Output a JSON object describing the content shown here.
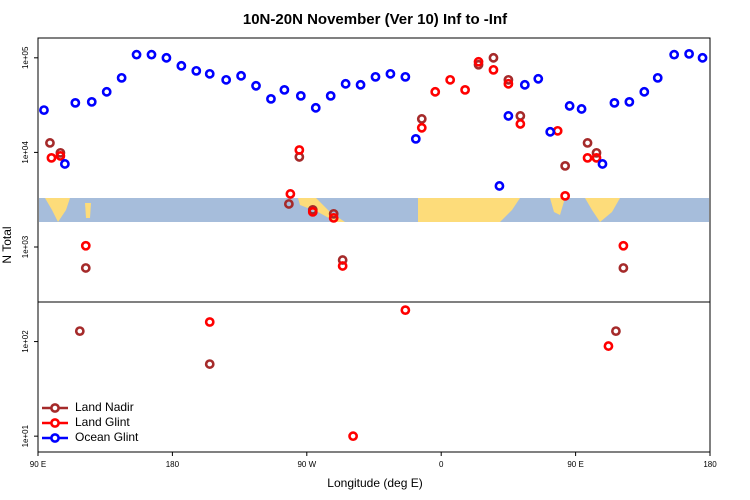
{
  "chart_data": {
    "type": "scatter",
    "title": "10N-20N November (Ver 10)   Inf to -Inf",
    "x_label": "Longitude (deg E)",
    "y_label": "N Total",
    "log_y": true,
    "legend": "bottom-left",
    "xlim": [
      90,
      540
    ],
    "xticks": [
      {
        "value": 90,
        "label": "90 E"
      },
      180,
      {
        "value": 270,
        "label": "90 W"
      },
      {
        "value": 360,
        "label": "0"
      },
      {
        "value": 450,
        "label": "90 E"
      },
      {
        "value": 540,
        "label": "180"
      }
    ],
    "ylim": [
      6.8,
      162000
    ],
    "yticks": [
      {
        "value": 10,
        "label": "1e+01"
      },
      {
        "value": 100,
        "label": "1e+02"
      },
      {
        "value": 1000,
        "label": "1e+03"
      },
      {
        "value": 10000,
        "label": "1e+04"
      },
      {
        "value": 100000,
        "label": "1e+05"
      }
    ],
    "series": [
      {
        "name": "Land Nadir",
        "color": "#a52a2a",
        "x": [
          98,
          105,
          122,
          118,
          205,
          258,
          265,
          274,
          288,
          294,
          347,
          385,
          395,
          405,
          413,
          443,
          458,
          464,
          477,
          482
        ],
        "values": [
          12600,
          9890,
          600,
          129,
          57.8,
          2850,
          8960,
          2470,
          2240,
          728,
          22600,
          84400,
          100000,
          58500,
          24300,
          7200,
          12600,
          9890,
          129,
          600
        ]
      },
      {
        "name": "Land Glint",
        "color": "#ff0000",
        "x": [
          99,
          105,
          122,
          205,
          259,
          265,
          274,
          288,
          294,
          301,
          336,
          347,
          356,
          366,
          376,
          385,
          395,
          405,
          413,
          438,
          443,
          458,
          464,
          472,
          482
        ],
        "values": [
          8750,
          9180,
          1030,
          161,
          3640,
          10600,
          2350,
          2030,
          630,
          10,
          215,
          18200,
          43700,
          58500,
          45800,
          90800,
          74600,
          53100,
          20000,
          16900,
          3470,
          8750,
          8750,
          89.6,
          1030
        ]
      },
      {
        "name": "Ocean Glint",
        "color": "#0000ff",
        "x": [
          94,
          108,
          115,
          126,
          136,
          146,
          156,
          166,
          176,
          186,
          196,
          205,
          216,
          226,
          236,
          246,
          255,
          266,
          276,
          286,
          296,
          306,
          316,
          326,
          336,
          343,
          399,
          405,
          416,
          425,
          433,
          446,
          454,
          468,
          476,
          486,
          496,
          505,
          516,
          526,
          535
        ],
        "values": [
          28000,
          7550,
          33400,
          34200,
          43700,
          61400,
          108000,
          108000,
          100000,
          82300,
          72800,
          67700,
          58500,
          64500,
          50600,
          36800,
          45800,
          39600,
          29600,
          39600,
          53100,
          51800,
          62900,
          67700,
          62900,
          13900,
          4420,
          24300,
          51800,
          60000,
          16500,
          31000,
          28800,
          7550,
          33400,
          34200,
          43700,
          61400,
          108000,
          110000,
          100000
        ]
      }
    ]
  }
}
